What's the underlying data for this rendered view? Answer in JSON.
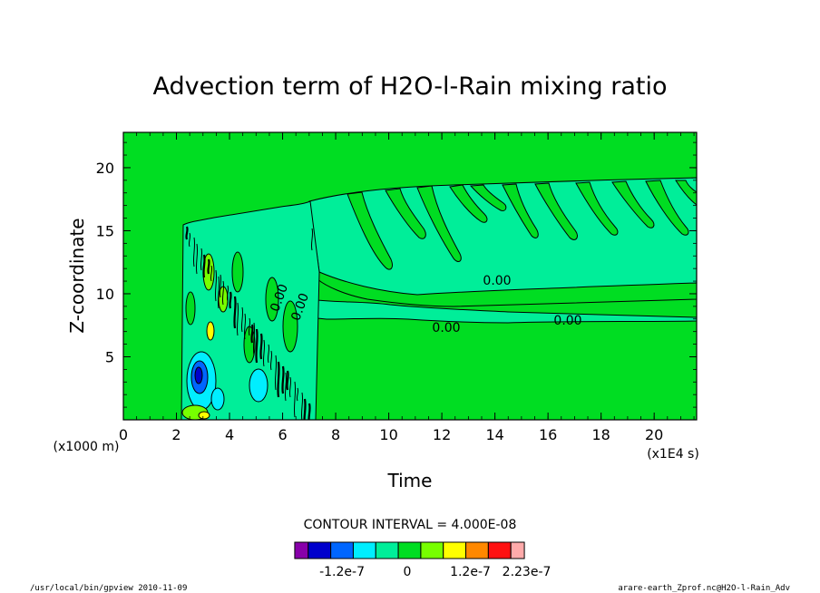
{
  "chart_data": {
    "type": "contour",
    "title": "Advection term of H2O-l-Rain mixing ratio",
    "xlabel": "Time",
    "ylabel": "Z-coordinate",
    "x_unit": "(x1E4 s)",
    "y_unit": "(x1000 m)",
    "xlim": [
      0,
      21.6
    ],
    "ylim": [
      0,
      22.8
    ],
    "x_ticks": [
      "0",
      "2",
      "4",
      "6",
      "8",
      "10",
      "12",
      "14",
      "16",
      "18",
      "20"
    ],
    "y_ticks": [
      "5",
      "10",
      "15",
      "20"
    ],
    "contour_labels": [
      "0.00",
      "0.00",
      "0.00",
      "0.00",
      "0.00"
    ],
    "contour_interval_text": "CONTOUR INTERVAL = 4.000E-08",
    "colorbar": {
      "colors": [
        "#8800aa",
        "#0000cc",
        "#0066ff",
        "#00eeff",
        "#00ee99",
        "#00dd22",
        "#77ff00",
        "#ffff00",
        "#ff8800",
        "#ff1111",
        "#ffaaaa"
      ],
      "tick_labels": [
        "-1.2e-7",
        "0",
        "1.2e-7",
        "2.23e-7"
      ]
    },
    "background_color": "#00dd22",
    "footer_left": "/usr/local/bin/gpview  2010-11-09",
    "footer_right": "arare-earth_Zprof.nc@H2O-l-Rain_Adv"
  }
}
